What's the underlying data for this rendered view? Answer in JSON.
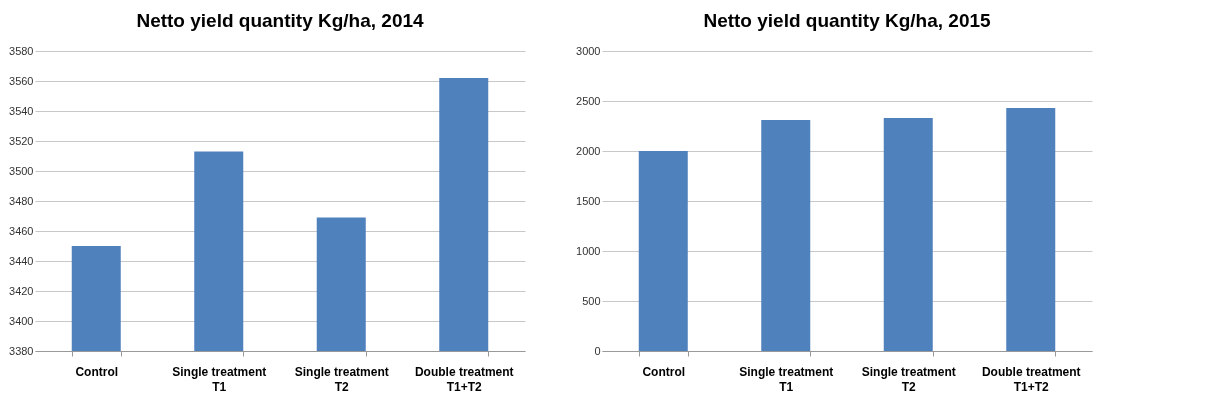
{
  "chart_data": [
    {
      "type": "bar",
      "title": "Netto yield quantity Kg/ha, 2014",
      "categories": [
        "Control",
        "Single treatment T1",
        "Single treatment T2",
        "Double treatment T1+T2"
      ],
      "values": [
        3450,
        3513,
        3469,
        3562
      ],
      "color": "#4f81bd",
      "ylim": [
        3380,
        3580
      ],
      "yticks": [
        3380,
        3400,
        3420,
        3440,
        3460,
        3480,
        3500,
        3520,
        3540,
        3560,
        3580
      ],
      "grid": "y"
    },
    {
      "type": "bar",
      "title": "Netto yield quantity Kg/ha, 2015",
      "categories": [
        "Control",
        "Single treatment T1",
        "Single treatment T2",
        "Double treatment T1+T2"
      ],
      "values": [
        2000,
        2310,
        2330,
        2430
      ],
      "color": "#4f81bd",
      "ylim": [
        0,
        3000
      ],
      "yticks": [
        0,
        500,
        1000,
        1500,
        2000,
        2500,
        3000
      ],
      "grid": "y"
    }
  ]
}
